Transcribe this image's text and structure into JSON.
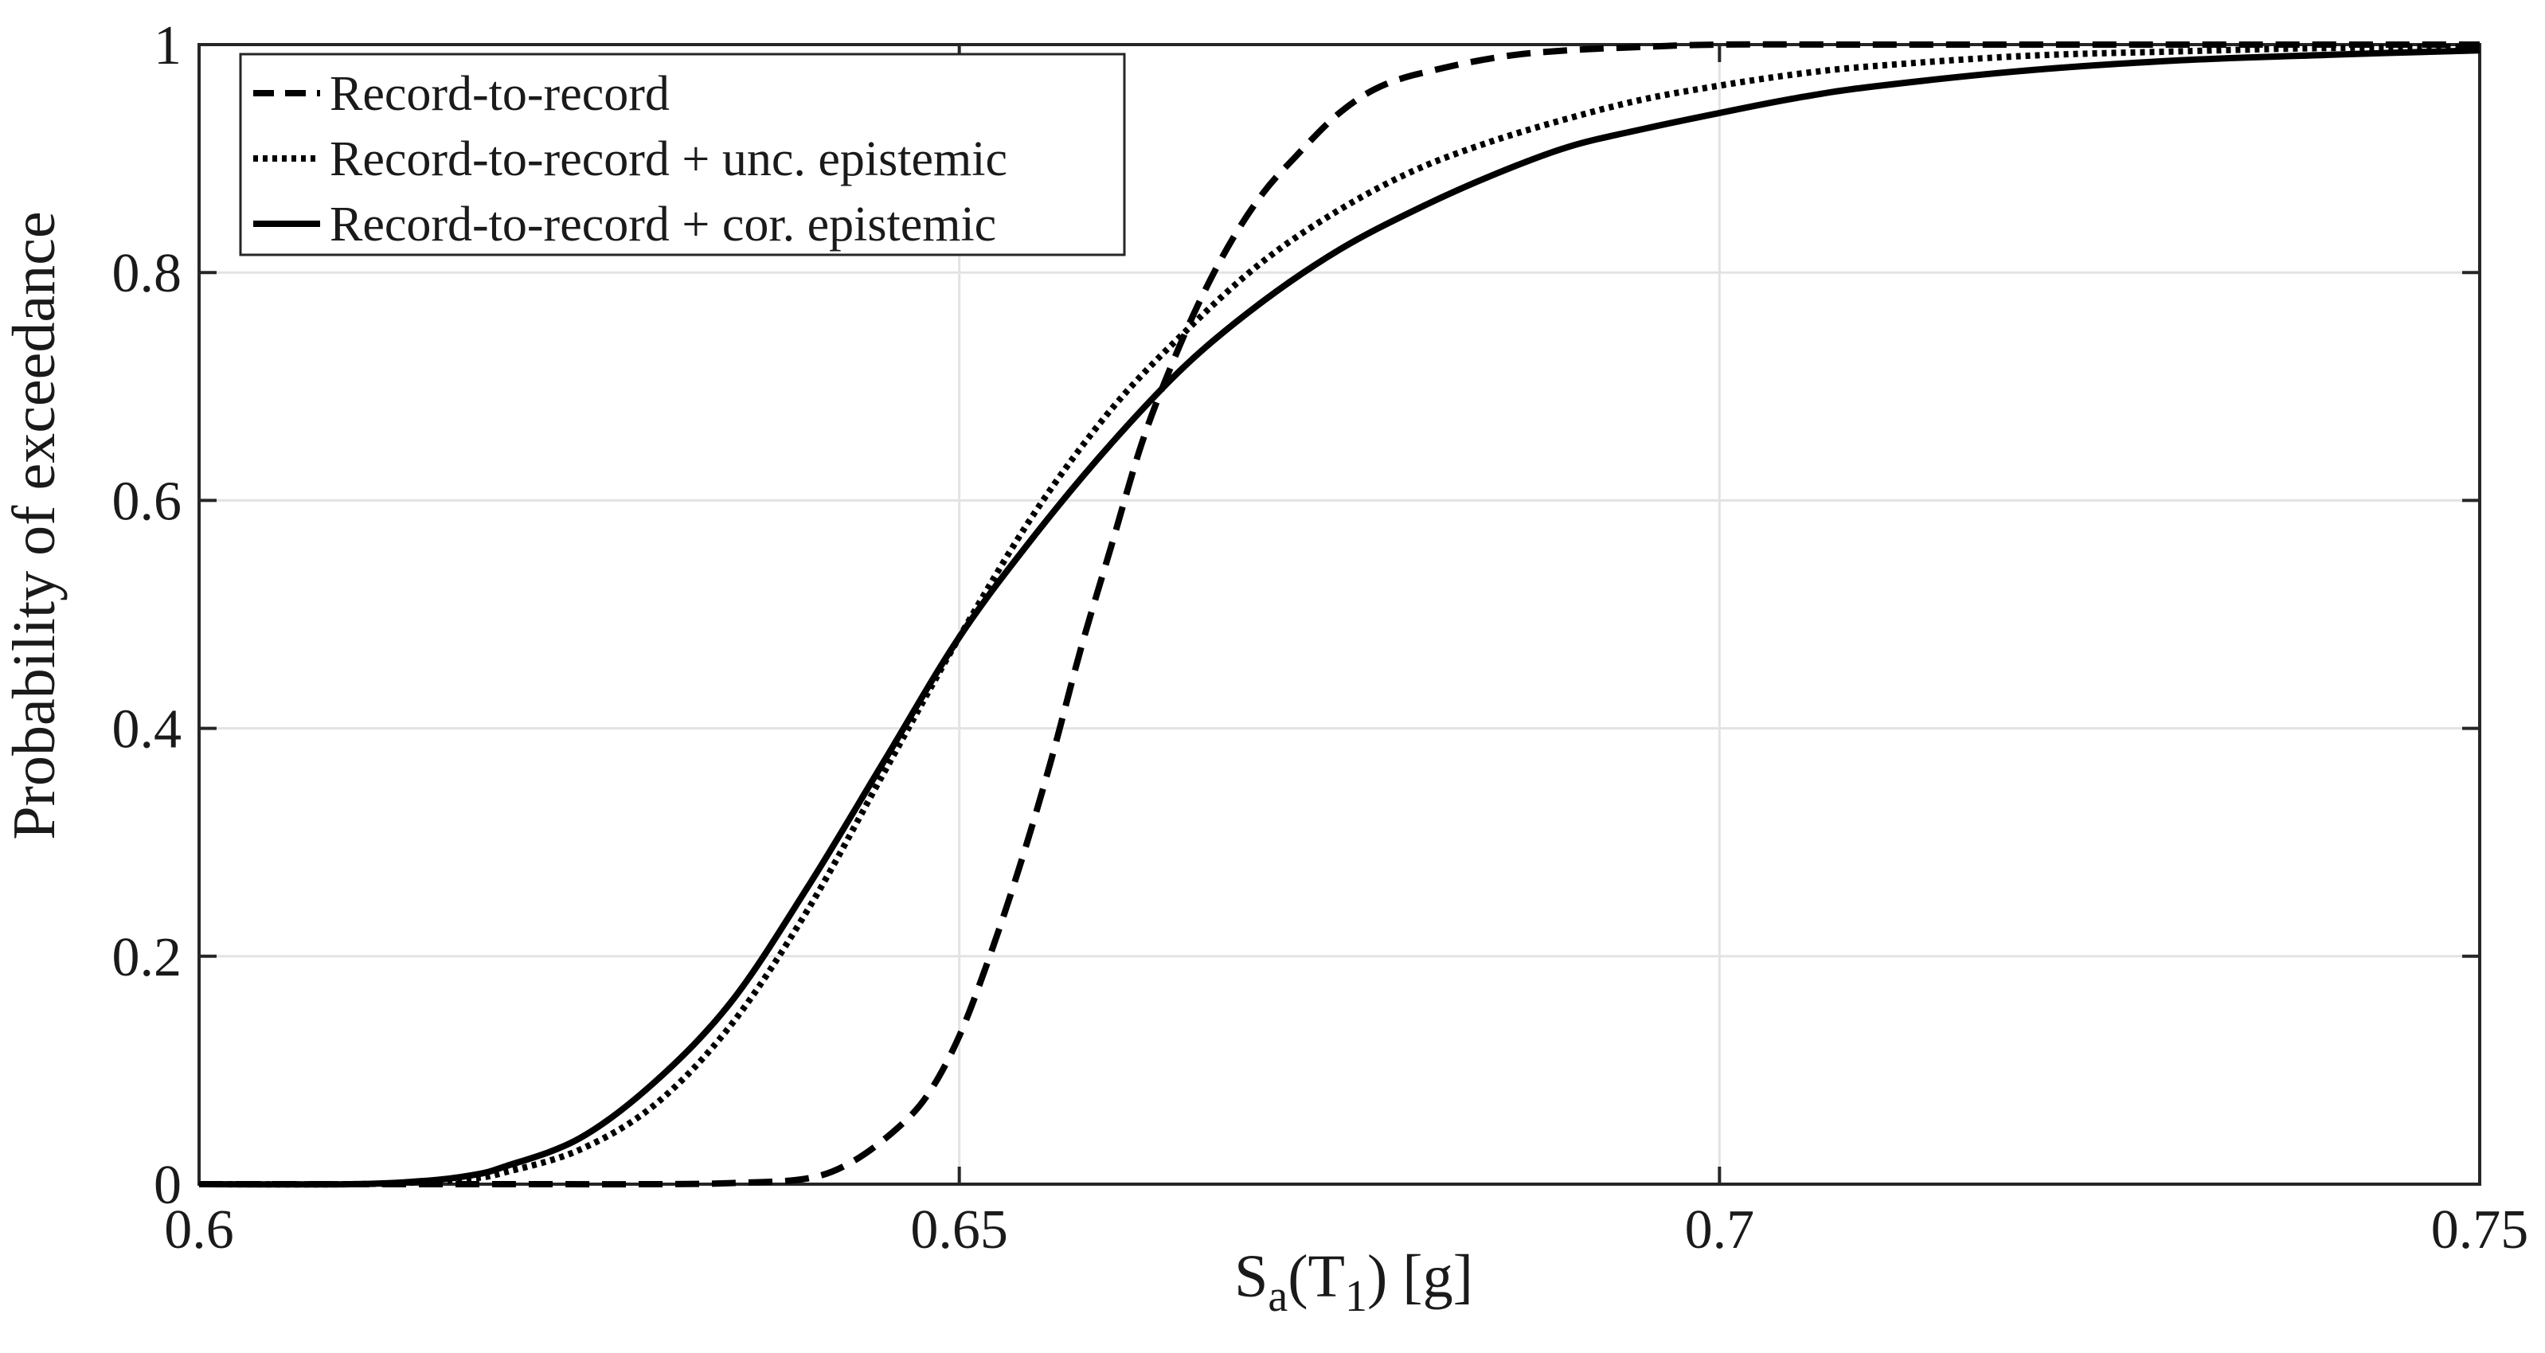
{
  "chart_data": {
    "type": "line",
    "title": "",
    "xlabel": {
      "main": "S",
      "sub_a": "a",
      "open": "(T",
      "sub_1": "1",
      "close": ") [g]"
    },
    "ylabel": "Probability of exceedance",
    "xlim": [
      0.6,
      0.75
    ],
    "ylim": [
      0,
      1
    ],
    "grid": true,
    "legend_position": "top-left",
    "x_ticks": [
      0.6,
      0.65,
      0.7,
      0.75
    ],
    "x_tick_labels": [
      "0.6",
      "0.65",
      "0.7",
      "0.75"
    ],
    "y_ticks": [
      0,
      0.2,
      0.4,
      0.6,
      0.8,
      1
    ],
    "y_tick_labels": [
      "0",
      "0.2",
      "0.4",
      "0.6",
      "0.8",
      "1"
    ],
    "series": [
      {
        "name": "Record-to-record",
        "style": "dashed",
        "color": "#000000",
        "x": [
          0.6,
          0.61,
          0.62,
          0.63,
          0.635,
          0.64,
          0.643,
          0.646,
          0.648,
          0.65,
          0.652,
          0.654,
          0.656,
          0.658,
          0.66,
          0.662,
          0.664,
          0.666,
          0.668,
          0.67,
          0.672,
          0.675,
          0.678,
          0.682,
          0.686,
          0.69,
          0.695,
          0.7,
          0.71,
          0.72,
          0.73,
          0.75
        ],
        "y": [
          0,
          0,
          0,
          0,
          0.001,
          0.005,
          0.02,
          0.05,
          0.08,
          0.13,
          0.2,
          0.28,
          0.37,
          0.47,
          0.56,
          0.65,
          0.72,
          0.78,
          0.83,
          0.87,
          0.9,
          0.94,
          0.965,
          0.98,
          0.99,
          0.995,
          0.998,
          1,
          1,
          1,
          1,
          1
        ]
      },
      {
        "name": "Record-to-record + unc. epistemic",
        "style": "dotted",
        "color": "#000000",
        "x": [
          0.6,
          0.61,
          0.615,
          0.618,
          0.62,
          0.625,
          0.63,
          0.635,
          0.64,
          0.645,
          0.65,
          0.655,
          0.66,
          0.665,
          0.67,
          0.675,
          0.68,
          0.685,
          0.69,
          0.695,
          0.7,
          0.705,
          0.71,
          0.72,
          0.73,
          0.74,
          0.75
        ],
        "y": [
          0,
          0,
          0.002,
          0.005,
          0.01,
          0.03,
          0.07,
          0.14,
          0.24,
          0.36,
          0.48,
          0.59,
          0.68,
          0.75,
          0.81,
          0.855,
          0.89,
          0.915,
          0.935,
          0.952,
          0.964,
          0.974,
          0.981,
          0.99,
          0.994,
          0.997,
          0.998
        ]
      },
      {
        "name": "Record-to-record + cor. epistemic",
        "style": "solid",
        "color": "#000000",
        "x": [
          0.6,
          0.61,
          0.615,
          0.618,
          0.62,
          0.625,
          0.63,
          0.635,
          0.64,
          0.645,
          0.65,
          0.655,
          0.66,
          0.665,
          0.67,
          0.675,
          0.68,
          0.685,
          0.69,
          0.695,
          0.7,
          0.705,
          0.71,
          0.72,
          0.73,
          0.74,
          0.75
        ],
        "y": [
          0,
          0,
          0.003,
          0.008,
          0.015,
          0.04,
          0.09,
          0.16,
          0.26,
          0.37,
          0.48,
          0.57,
          0.65,
          0.72,
          0.775,
          0.82,
          0.855,
          0.885,
          0.91,
          0.926,
          0.94,
          0.953,
          0.963,
          0.977,
          0.986,
          0.991,
          0.995
        ]
      }
    ]
  }
}
